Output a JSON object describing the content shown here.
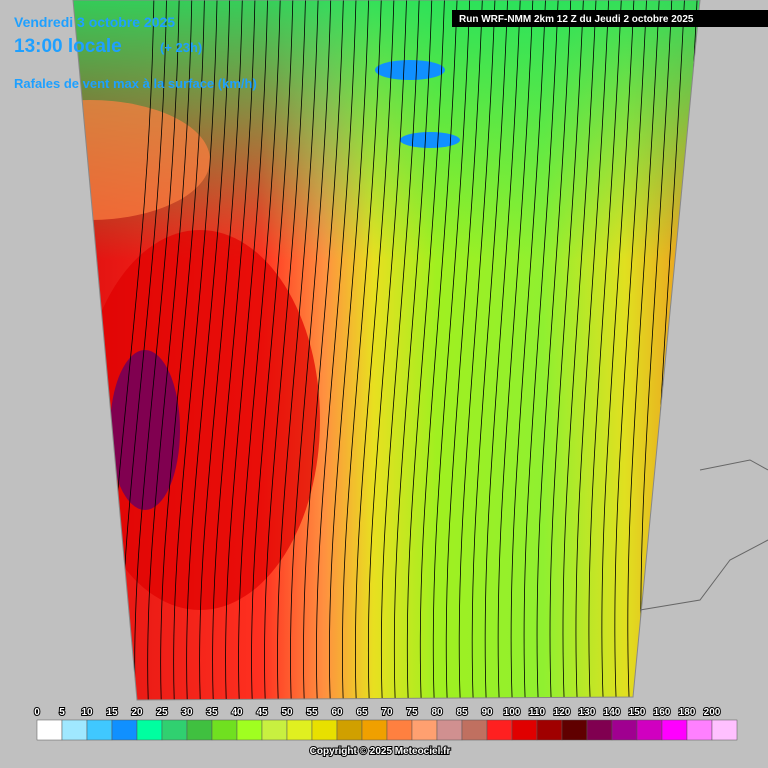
{
  "header": {
    "date": "Vendredi 3 octobre 2025",
    "time": "13:00 locale",
    "offset": "(+ 23h)",
    "parameter": "Rafales de vent max à la surface (km/h)",
    "run": "Run WRF-NMM 2km 12 Z du Jeudi 2 octobre 2025"
  },
  "legend": {
    "items": [
      {
        "label": 0,
        "color": "#ffffff"
      },
      {
        "label": 5,
        "color": "#a0e8ff"
      },
      {
        "label": 10,
        "color": "#40c8ff"
      },
      {
        "label": 15,
        "color": "#1090ff"
      },
      {
        "label": 20,
        "color": "#00ffa0"
      },
      {
        "label": 25,
        "color": "#30d070"
      },
      {
        "label": 30,
        "color": "#40c040"
      },
      {
        "label": 35,
        "color": "#70e020"
      },
      {
        "label": 40,
        "color": "#a0ff20"
      },
      {
        "label": 45,
        "color": "#c8f040"
      },
      {
        "label": 50,
        "color": "#e0f020"
      },
      {
        "label": 55,
        "color": "#e8e000"
      },
      {
        "label": 60,
        "color": "#d0a000"
      },
      {
        "label": 65,
        "color": "#f0a000"
      },
      {
        "label": 70,
        "color": "#ff8040"
      },
      {
        "label": 75,
        "color": "#ffa070"
      },
      {
        "label": 80,
        "color": "#d09090"
      },
      {
        "label": 85,
        "color": "#c07060"
      },
      {
        "label": 90,
        "color": "#ff2020"
      },
      {
        "label": 100,
        "color": "#e00000"
      },
      {
        "label": 110,
        "color": "#a00000"
      },
      {
        "label": 120,
        "color": "#600000"
      },
      {
        "label": 130,
        "color": "#800050"
      },
      {
        "label": 140,
        "color": "#a00090"
      },
      {
        "label": 150,
        "color": "#d000c0"
      },
      {
        "label": 160,
        "color": "#ff00ff"
      },
      {
        "label": 180,
        "color": "#ff80ff"
      },
      {
        "label": 200,
        "color": "#ffc0ff"
      }
    ]
  },
  "footer": {
    "copyright": "Copyright © 2025 Meteociel.fr"
  }
}
